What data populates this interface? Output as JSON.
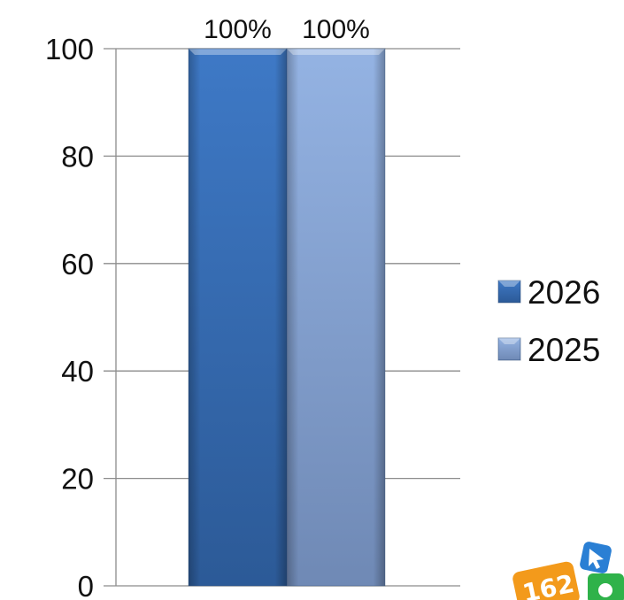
{
  "chart_data": {
    "type": "bar",
    "categories": [
      ""
    ],
    "series": [
      {
        "name": "2026",
        "values": [
          100
        ],
        "data_label": "100%",
        "color": "#3a6fb5"
      },
      {
        "name": "2025",
        "values": [
          100
        ],
        "data_label": "100%",
        "color": "#8aa8d8"
      }
    ],
    "title": "",
    "xlabel": "",
    "ylabel": "",
    "ylim": [
      0,
      100
    ],
    "yticks": [
      "0",
      "20",
      "40",
      "60",
      "80",
      "100"
    ],
    "grid": true,
    "legend": "right",
    "gridline_color": "#8c8c8c",
    "logo_text": "162"
  }
}
